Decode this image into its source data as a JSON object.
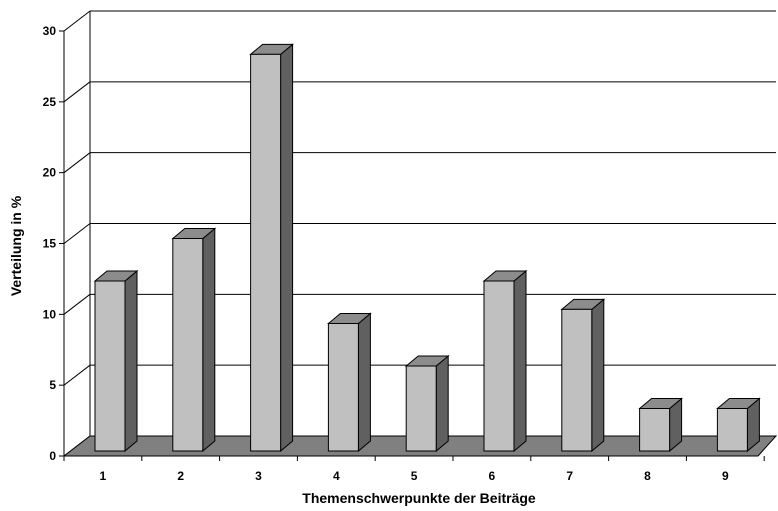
{
  "chart_data": {
    "type": "bar",
    "title": "",
    "xlabel": "Themenschwerpunkte der Beiträge",
    "ylabel": "Verteilung in %",
    "categories": [
      "1",
      "2",
      "3",
      "4",
      "5",
      "6",
      "7",
      "8",
      "9"
    ],
    "values": [
      12,
      15,
      28,
      9,
      6,
      12,
      10,
      3,
      3
    ],
    "ylim": [
      0,
      30
    ],
    "yticks": [
      "0",
      "5",
      "10",
      "15",
      "20",
      "25",
      "30"
    ],
    "grid": true,
    "three_d": true,
    "colors": {
      "bar_front": "#c0c0c0",
      "bar_top": "#8c8c8c",
      "bar_side": "#606060",
      "floor": "#808080",
      "gridline": "#000000"
    }
  }
}
